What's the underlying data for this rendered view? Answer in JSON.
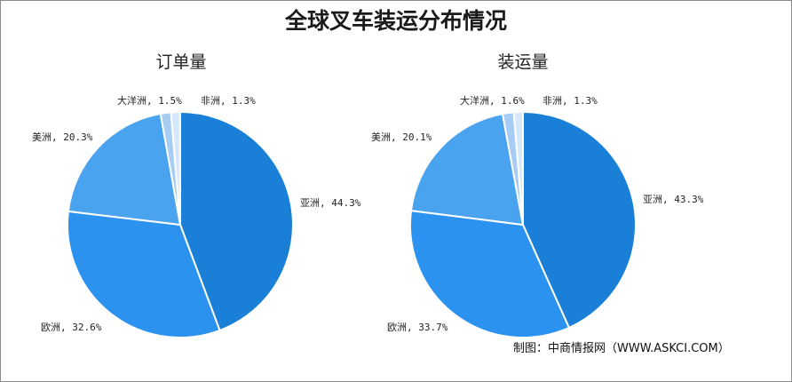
{
  "title": "全球叉车装运分布情况",
  "source": "制图：中商情报网（WWW.ASKCI.COM）",
  "colors": {
    "asia": "#1a7fd6",
    "europe": "#2b93ef",
    "america": "#4aa3ee",
    "oceania": "#a7cdf5",
    "africa": "#d6e8fb"
  },
  "chart_data": [
    {
      "type": "pie",
      "title": "订单量",
      "slices": [
        {
          "label": "亚洲, 44.3%",
          "value": 44.3
        },
        {
          "label": "欧洲, 32.6%",
          "value": 32.6
        },
        {
          "label": "美洲, 20.3%",
          "value": 20.3
        },
        {
          "label": "大洋洲, 1.5%",
          "value": 1.5
        },
        {
          "label": "非洲, 1.3%",
          "value": 1.3
        }
      ]
    },
    {
      "type": "pie",
      "title": "装运量",
      "slices": [
        {
          "label": "亚洲, 43.3%",
          "value": 43.3
        },
        {
          "label": "欧洲, 33.7%",
          "value": 33.7
        },
        {
          "label": "美洲, 20.1%",
          "value": 20.1
        },
        {
          "label": "大洋洲, 1.6%",
          "value": 1.6
        },
        {
          "label": "非洲, 1.3%",
          "value": 1.3
        }
      ]
    }
  ]
}
